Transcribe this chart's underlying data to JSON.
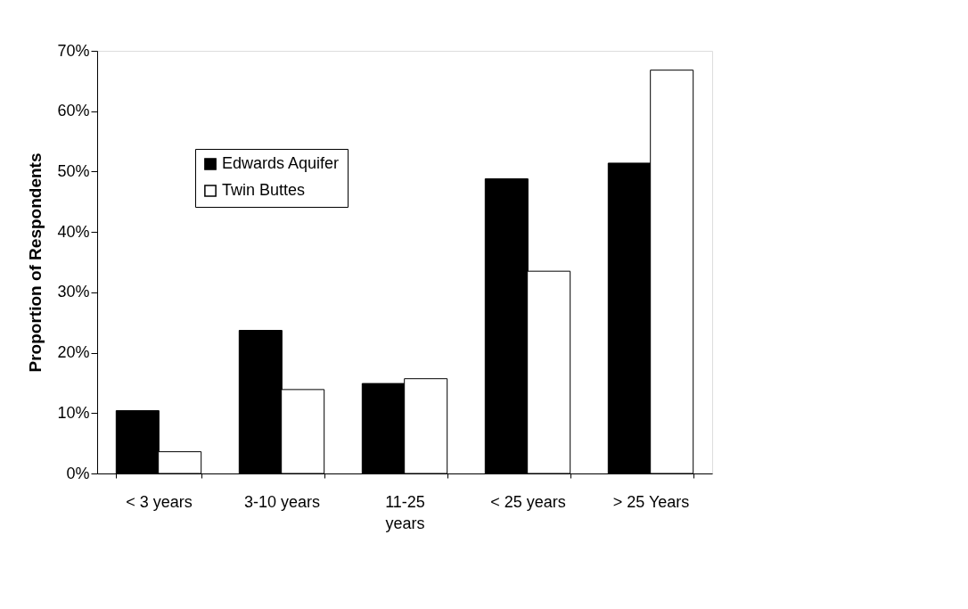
{
  "chart_data": {
    "type": "bar",
    "ylabel": "Proportion of Respondents",
    "categories": [
      "< 3 years",
      "3-10 years",
      "11-25 years",
      "< 25 years",
      "> 25 Years"
    ],
    "series": [
      {
        "name": "Edwards Aquifer",
        "color": "#000000",
        "values": [
          10.4,
          23.7,
          14.9,
          48.8,
          51.4
        ]
      },
      {
        "name": "Twin Buttes",
        "color": "#ffffff",
        "values": [
          3.6,
          13.9,
          15.7,
          33.5,
          66.8
        ]
      }
    ],
    "ylim": [
      0,
      70
    ],
    "yticks": [
      {
        "value": 0,
        "label": "0%"
      },
      {
        "value": 10,
        "label": "10%"
      },
      {
        "value": 20,
        "label": "20%"
      },
      {
        "value": 30,
        "label": "30%"
      },
      {
        "value": 40,
        "label": "40%"
      },
      {
        "value": 50,
        "label": "50%"
      },
      {
        "value": 60,
        "label": "60%"
      },
      {
        "value": 70,
        "label": "70%"
      }
    ],
    "grid": false,
    "legend": "top left"
  }
}
